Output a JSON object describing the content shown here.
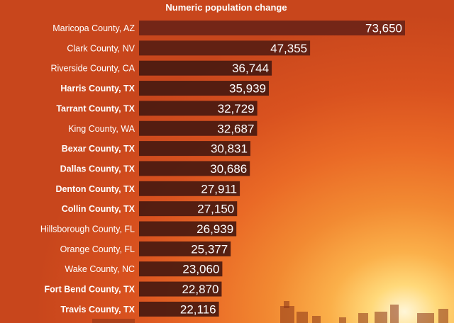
{
  "chart_data": {
    "type": "bar",
    "orientation": "horizontal",
    "title": "Numeric population change",
    "categories": [
      "Maricopa County, AZ",
      "Clark County, NV",
      "Riverside County, CA",
      "Harris County, TX",
      "Tarrant County, TX",
      "King County, WA",
      "Bexar County, TX",
      "Dallas County, TX",
      "Denton County, TX",
      "Collin County, TX",
      "Hillsborough County, FL",
      "Orange County, FL",
      "Wake County, NC",
      "Fort Bend County, TX",
      "Travis County, TX"
    ],
    "bold_categories": [
      "Harris County, TX",
      "Tarrant County, TX",
      "Bexar County, TX",
      "Dallas County, TX",
      "Denton County, TX",
      "Collin County, TX",
      "Fort Bend County, TX",
      "Travis County, TX"
    ],
    "values": [
      73650,
      47355,
      36744,
      35939,
      32729,
      32687,
      30831,
      30686,
      27911,
      27150,
      26939,
      25377,
      23060,
      22870,
      22116
    ],
    "value_labels": [
      "73,650",
      "47,355",
      "36,744",
      "35,939",
      "32,729",
      "32,687",
      "30,831",
      "30,686",
      "27,911",
      "27,150",
      "26,939",
      "25,377",
      "23,060",
      "22,870",
      "22,116"
    ],
    "xlim": [
      0,
      73650
    ],
    "grid": false,
    "legend": "none"
  },
  "colors": {
    "bar": "#4a1a10",
    "text": "#ffffff"
  }
}
